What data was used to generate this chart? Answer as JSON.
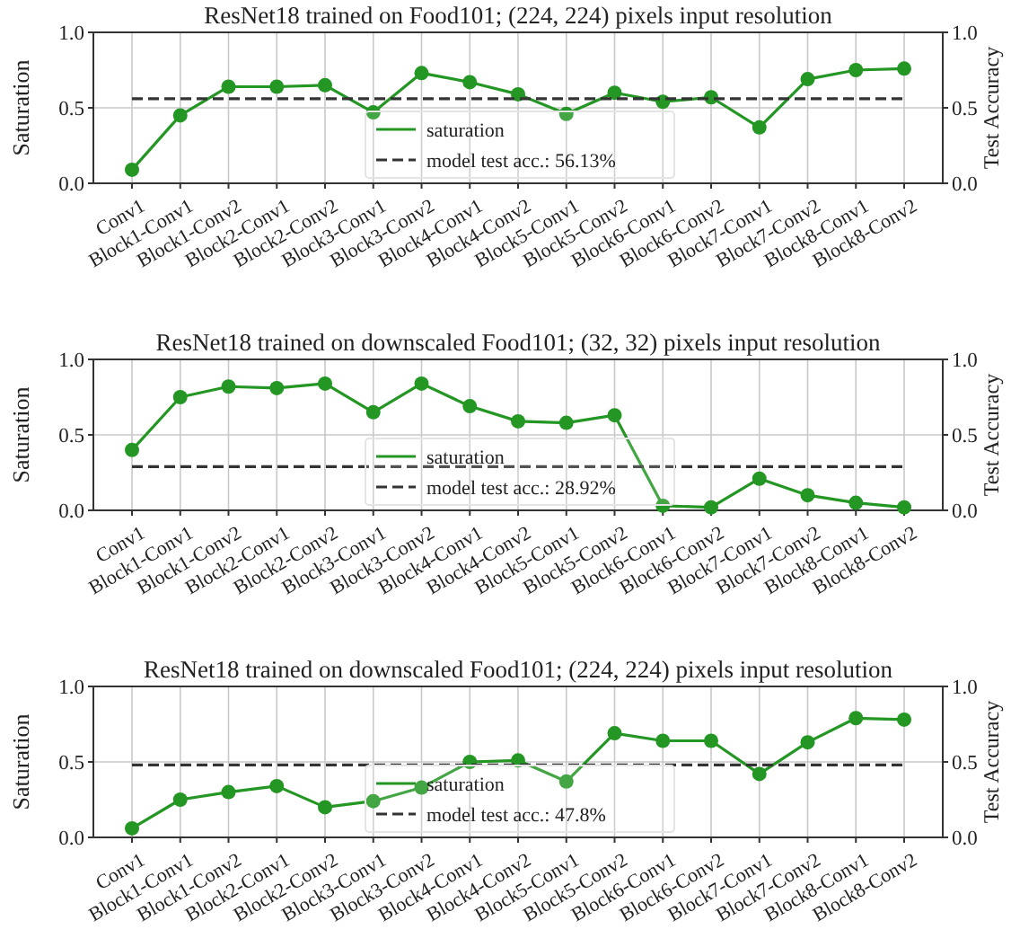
{
  "chart_data": [
    {
      "type": "line",
      "title": "ResNet18 trained on Food101; (224, 224) pixels input resolution",
      "ylabel": "Saturation",
      "y2label": "Test Accuracy",
      "categories": [
        "Conv1",
        "Block1-Conv1",
        "Block1-Conv2",
        "Block2-Conv1",
        "Block2-Conv2",
        "Block3-Conv1",
        "Block3-Conv2",
        "Block4-Conv1",
        "Block4-Conv2",
        "Block5-Conv1",
        "Block5-Conv2",
        "Block6-Conv1",
        "Block6-Conv2",
        "Block7-Conv1",
        "Block7-Conv2",
        "Block8-Conv1",
        "Block8-Conv2"
      ],
      "series": [
        {
          "name": "saturation",
          "color": "#239623",
          "marker": "circle",
          "line_style": "solid",
          "values": [
            0.09,
            0.45,
            0.64,
            0.64,
            0.65,
            0.47,
            0.73,
            0.67,
            0.59,
            0.46,
            0.6,
            0.54,
            0.57,
            0.37,
            0.69,
            0.75,
            0.76
          ]
        },
        {
          "name": "model test acc.: 56.13%",
          "color": "#333333",
          "marker": "none",
          "line_style": "dashed",
          "values": [
            0.56,
            0.56,
            0.56,
            0.56,
            0.56,
            0.56,
            0.56,
            0.56,
            0.56,
            0.56,
            0.56,
            0.56,
            0.56,
            0.56,
            0.56,
            0.56,
            0.56
          ]
        }
      ],
      "ylim": [
        0,
        1
      ],
      "yticks": [
        {
          "value": 0,
          "label": "0.0"
        },
        {
          "value": 0.5,
          "label": "0.5"
        },
        {
          "value": 1,
          "label": "1.0"
        }
      ],
      "y2lim": [
        0,
        1
      ],
      "y2ticks": [
        {
          "value": 0,
          "label": "0.0"
        },
        {
          "value": 0.5,
          "label": "0.5"
        },
        {
          "value": 1,
          "label": "1.0"
        }
      ],
      "grid": true,
      "legend": "bottom"
    },
    {
      "type": "line",
      "title": "ResNet18 trained on downscaled Food101; (32, 32) pixels input resolution",
      "ylabel": "Saturation",
      "y2label": "Test Accuracy",
      "categories": [
        "Conv1",
        "Block1-Conv1",
        "Block1-Conv2",
        "Block2-Conv1",
        "Block2-Conv2",
        "Block3-Conv1",
        "Block3-Conv2",
        "Block4-Conv1",
        "Block4-Conv2",
        "Block5-Conv1",
        "Block5-Conv2",
        "Block6-Conv1",
        "Block6-Conv2",
        "Block7-Conv1",
        "Block7-Conv2",
        "Block8-Conv1",
        "Block8-Conv2"
      ],
      "series": [
        {
          "name": "saturation",
          "color": "#239623",
          "marker": "circle",
          "line_style": "solid",
          "values": [
            0.4,
            0.75,
            0.82,
            0.81,
            0.84,
            0.65,
            0.84,
            0.69,
            0.59,
            0.58,
            0.63,
            0.03,
            0.02,
            0.21,
            0.1,
            0.05,
            0.02
          ]
        },
        {
          "name": "model test acc.: 28.92%",
          "color": "#333333",
          "marker": "none",
          "line_style": "dashed",
          "values": [
            0.29,
            0.29,
            0.29,
            0.29,
            0.29,
            0.29,
            0.29,
            0.29,
            0.29,
            0.29,
            0.29,
            0.29,
            0.29,
            0.29,
            0.29,
            0.29,
            0.29
          ]
        }
      ],
      "ylim": [
        0,
        1
      ],
      "yticks": [
        {
          "value": 0,
          "label": "0.0"
        },
        {
          "value": 0.5,
          "label": "0.5"
        },
        {
          "value": 1,
          "label": "1.0"
        }
      ],
      "y2lim": [
        0,
        1
      ],
      "y2ticks": [
        {
          "value": 0,
          "label": "0.0"
        },
        {
          "value": 0.5,
          "label": "0.5"
        },
        {
          "value": 1,
          "label": "1.0"
        }
      ],
      "grid": true,
      "legend": "bottom"
    },
    {
      "type": "line",
      "title": "ResNet18 trained on downscaled Food101; (224, 224) pixels input resolution",
      "ylabel": "Saturation",
      "y2label": "Test Accuracy",
      "categories": [
        "Conv1",
        "Block1-Conv1",
        "Block1-Conv2",
        "Block2-Conv1",
        "Block2-Conv2",
        "Block3-Conv1",
        "Block3-Conv2",
        "Block4-Conv1",
        "Block4-Conv2",
        "Block5-Conv1",
        "Block5-Conv2",
        "Block6-Conv1",
        "Block6-Conv2",
        "Block7-Conv1",
        "Block7-Conv2",
        "Block8-Conv1",
        "Block8-Conv2"
      ],
      "series": [
        {
          "name": "saturation",
          "color": "#239623",
          "marker": "circle",
          "line_style": "solid",
          "values": [
            0.06,
            0.25,
            0.3,
            0.34,
            0.2,
            0.24,
            0.33,
            0.5,
            0.51,
            0.37,
            0.69,
            0.64,
            0.64,
            0.42,
            0.63,
            0.79,
            0.78
          ]
        },
        {
          "name": "model test acc.: 47.8%",
          "color": "#333333",
          "marker": "none",
          "line_style": "dashed",
          "values": [
            0.48,
            0.48,
            0.48,
            0.48,
            0.48,
            0.48,
            0.48,
            0.48,
            0.48,
            0.48,
            0.48,
            0.48,
            0.48,
            0.48,
            0.48,
            0.48,
            0.48
          ]
        }
      ],
      "ylim": [
        0,
        1
      ],
      "yticks": [
        {
          "value": 0,
          "label": "0.0"
        },
        {
          "value": 0.5,
          "label": "0.5"
        },
        {
          "value": 1,
          "label": "1.0"
        }
      ],
      "y2lim": [
        0,
        1
      ],
      "y2ticks": [
        {
          "value": 0,
          "label": "0.0"
        },
        {
          "value": 0.5,
          "label": "0.5"
        },
        {
          "value": 1,
          "label": "1.0"
        }
      ],
      "grid": true,
      "legend": "bottom"
    }
  ]
}
